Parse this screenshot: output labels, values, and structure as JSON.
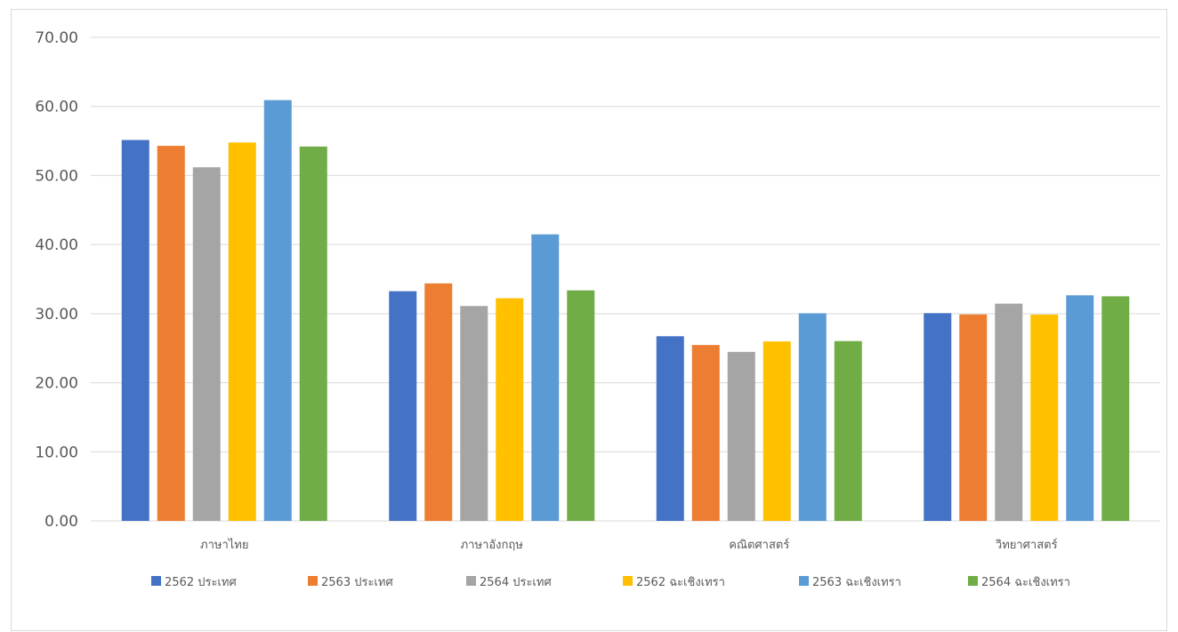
{
  "chart_data": {
    "type": "bar",
    "categories": [
      "ภาษาไทย",
      "ภาษาอังกฤษ",
      "คณิตศาสตร์",
      "วิทยาศาสตร์"
    ],
    "series": [
      {
        "name": "2562 ประเทศ",
        "color": "#4472C4",
        "values": [
          55.14,
          33.25,
          26.73,
          30.07
        ]
      },
      {
        "name": "2563 ประเทศ",
        "color": "#ED7D31",
        "values": [
          54.29,
          34.38,
          25.46,
          29.89
        ]
      },
      {
        "name": "2564 ประเทศ",
        "color": "#A5A5A5",
        "values": [
          51.19,
          31.11,
          24.47,
          31.45
        ]
      },
      {
        "name": "2562 ฉะเชิงเทรา",
        "color": "#FFC000",
        "values": [
          54.78,
          32.23,
          25.98,
          29.87
        ]
      },
      {
        "name": "2563 ฉะเชิงเทรา",
        "color": "#5B9BD5",
        "values": [
          60.91,
          41.48,
          30.05,
          32.66
        ]
      },
      {
        "name": "2564 ฉะเชิงเทรา",
        "color": "#70AD47",
        "values": [
          54.19,
          33.37,
          26.03,
          32.51
        ]
      }
    ],
    "y_ticks": [
      "0.00",
      "10.00",
      "20.00",
      "30.00",
      "40.00",
      "50.00",
      "60.00",
      "70.00"
    ],
    "ylim": [
      0,
      70
    ],
    "grid": true,
    "legend": "bottom"
  }
}
